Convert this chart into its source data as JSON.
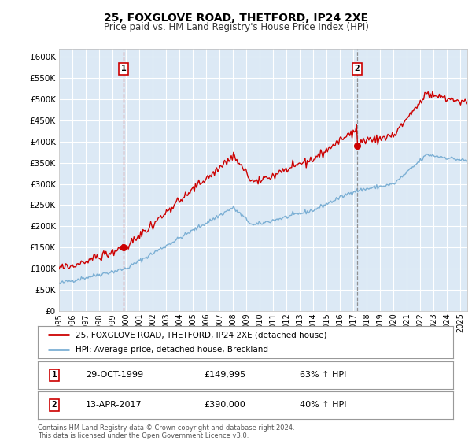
{
  "title": "25, FOXGLOVE ROAD, THETFORD, IP24 2XE",
  "subtitle": "Price paid vs. HM Land Registry's House Price Index (HPI)",
  "plot_bg_color": "#dce9f5",
  "ylim": [
    0,
    620000
  ],
  "yticks": [
    0,
    50000,
    100000,
    150000,
    200000,
    250000,
    300000,
    350000,
    400000,
    450000,
    500000,
    550000,
    600000
  ],
  "xlim_start": 1995.0,
  "xlim_end": 2025.5,
  "marker1_x": 1999.83,
  "marker1_y": 149995,
  "marker1_label": "1",
  "marker2_x": 2017.28,
  "marker2_y": 390000,
  "marker2_label": "2",
  "red_line_color": "#cc0000",
  "blue_line_color": "#7bafd4",
  "legend_label_red": "25, FOXGLOVE ROAD, THETFORD, IP24 2XE (detached house)",
  "legend_label_blue": "HPI: Average price, detached house, Breckland",
  "annotation1_date": "29-OCT-1999",
  "annotation1_price": "£149,995",
  "annotation1_hpi": "63% ↑ HPI",
  "annotation2_date": "13-APR-2017",
  "annotation2_price": "£390,000",
  "annotation2_hpi": "40% ↑ HPI",
  "footer": "Contains HM Land Registry data © Crown copyright and database right 2024.\nThis data is licensed under the Open Government Licence v3.0.",
  "xtick_years": [
    1995,
    1996,
    1997,
    1998,
    1999,
    2000,
    2001,
    2002,
    2003,
    2004,
    2005,
    2006,
    2007,
    2008,
    2009,
    2010,
    2011,
    2012,
    2013,
    2014,
    2015,
    2016,
    2017,
    2018,
    2019,
    2020,
    2021,
    2022,
    2023,
    2024,
    2025
  ]
}
